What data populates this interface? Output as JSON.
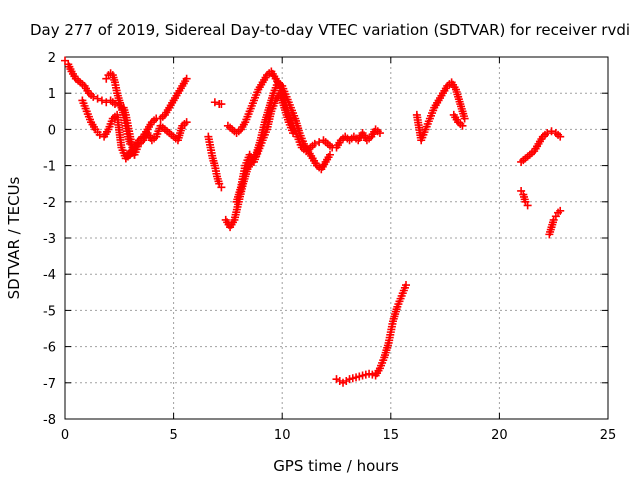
{
  "chart_data": {
    "type": "scatter",
    "title": "Day 277 of 2019, Sidereal Day-to-day VTEC variation (SDTVAR) for receiver rvdi",
    "xlabel": "GPS time / hours",
    "ylabel": "SDTVAR / TECUs",
    "xlim": [
      0,
      25
    ],
    "ylim": [
      -8,
      2
    ],
    "xticks": [
      0,
      5,
      10,
      15,
      20,
      25
    ],
    "yticks": [
      -8,
      -7,
      -6,
      -5,
      -4,
      -3,
      -2,
      -1,
      0,
      1,
      2
    ],
    "grid": true,
    "legend": "none",
    "marker": "+",
    "marker_color": "#ff0000",
    "series": [
      {
        "x": [
          0,
          0.15,
          0.3,
          0.5,
          0.7,
          0.9,
          1.1,
          1.3,
          1.5,
          1.7,
          1.9,
          2.1,
          2.3,
          2.5,
          2.7,
          2.8,
          2.9,
          3.0,
          3.1,
          3.2
        ],
        "values": [
          1.9,
          1.8,
          1.6,
          1.4,
          1.3,
          1.2,
          1.0,
          0.9,
          0.85,
          0.8,
          0.75,
          0.8,
          0.7,
          0.65,
          0.6,
          0.4,
          0.1,
          -0.2,
          -0.5,
          -0.7
        ]
      },
      {
        "x": [
          1.9,
          2.0,
          2.1,
          2.2,
          2.3,
          2.4,
          2.5,
          2.6,
          2.7,
          2.8,
          2.9,
          3.0
        ],
        "values": [
          1.4,
          1.5,
          1.55,
          1.5,
          1.3,
          1.0,
          0.8,
          0.6,
          0.4,
          0.1,
          -0.2,
          -0.4
        ]
      },
      {
        "x": [
          0.8,
          1.0,
          1.2,
          1.4,
          1.6,
          1.8,
          2.0,
          2.2,
          2.4,
          2.6,
          2.8,
          3.0,
          3.2,
          3.4,
          3.6,
          3.8,
          4.0,
          4.2,
          4.4,
          4.6,
          4.8,
          5.0,
          5.2,
          5.4,
          5.6
        ],
        "values": [
          0.8,
          0.5,
          0.2,
          0.0,
          -0.15,
          -0.2,
          0.0,
          0.3,
          0.4,
          -0.5,
          -0.8,
          -0.7,
          -0.5,
          -0.3,
          -0.2,
          0.0,
          0.2,
          0.3,
          0.3,
          0.4,
          0.6,
          0.8,
          1.0,
          1.2,
          1.4
        ]
      },
      {
        "x": [
          2.8,
          3.0,
          3.2,
          3.4,
          3.6,
          3.8,
          4.0,
          4.2,
          4.4,
          4.6,
          4.8,
          5.0,
          5.2,
          5.4,
          5.6
        ],
        "values": [
          -0.8,
          -0.6,
          -0.7,
          -0.4,
          -0.3,
          -0.1,
          -0.3,
          -0.2,
          0.1,
          0.0,
          -0.1,
          -0.2,
          -0.3,
          0.1,
          0.2
        ]
      },
      {
        "x": [
          6.9,
          7.1,
          7.2
        ],
        "values": [
          0.75,
          0.7,
          0.7
        ]
      },
      {
        "x": [
          6.6,
          6.7,
          6.8,
          6.9,
          7.0,
          7.1,
          7.2
        ],
        "values": [
          -0.2,
          -0.5,
          -0.8,
          -1.0,
          -1.3,
          -1.5,
          -1.6
        ]
      },
      {
        "x": [
          7.5,
          7.7,
          7.9,
          8.1,
          8.3,
          8.5,
          8.7,
          8.9,
          9.1,
          9.3,
          9.5,
          9.7,
          9.9,
          10.1,
          10.3,
          10.5,
          10.7,
          10.9,
          11.1,
          11.3,
          11.5,
          11.7,
          11.9,
          12.1,
          12.3,
          12.5,
          12.7,
          12.9,
          13.1,
          13.3,
          13.5,
          13.7,
          13.9,
          14.1,
          14.3,
          14.5
        ],
        "values": [
          0.1,
          0.0,
          -0.1,
          0.0,
          0.2,
          0.5,
          0.8,
          1.1,
          1.3,
          1.5,
          1.6,
          1.4,
          1.2,
          0.8,
          0.4,
          0.1,
          -0.2,
          -0.5,
          -0.6,
          -0.5,
          -0.4,
          -0.35,
          -0.3,
          -0.4,
          -0.5,
          -0.5,
          -0.3,
          -0.2,
          -0.3,
          -0.2,
          -0.3,
          -0.1,
          -0.3,
          -0.2,
          0.0,
          -0.1
        ]
      },
      {
        "x": [
          7.4,
          7.6,
          7.8,
          8.0,
          8.2,
          8.4,
          8.6,
          8.8,
          9.0,
          9.2,
          9.4,
          9.6,
          9.8,
          10.0,
          10.2,
          10.4,
          10.6,
          10.8,
          11.0,
          11.2,
          11.4,
          11.6,
          11.8,
          12.0,
          12.2
        ],
        "values": [
          -2.5,
          -2.7,
          -2.5,
          -2.0,
          -1.5,
          -1.1,
          -0.9,
          -0.7,
          -0.3,
          0.2,
          0.6,
          1.0,
          1.3,
          1.2,
          0.9,
          0.6,
          0.3,
          -0.1,
          -0.4,
          -0.6,
          -0.8,
          -1.0,
          -1.1,
          -0.9,
          -0.7
        ]
      },
      {
        "x": [
          7.9,
          8.1,
          8.3,
          8.5,
          8.7,
          8.9,
          9.1,
          9.3,
          9.5,
          9.7,
          9.9,
          10.1,
          10.3,
          10.5
        ],
        "values": [
          -2.0,
          -1.6,
          -1.0,
          -0.7,
          -0.9,
          -0.6,
          -0.3,
          0.0,
          0.5,
          0.8,
          1.0,
          0.6,
          0.2,
          -0.1
        ]
      },
      {
        "x": [
          12.5,
          12.8,
          13.1,
          13.4,
          13.7,
          14.0,
          14.3,
          14.5,
          14.7,
          14.9,
          15.1,
          15.3,
          15.5,
          15.7
        ],
        "values": [
          -6.9,
          -7.0,
          -6.9,
          -6.85,
          -6.8,
          -6.75,
          -6.8,
          -6.6,
          -6.3,
          -5.9,
          -5.3,
          -4.9,
          -4.6,
          -4.3
        ]
      },
      {
        "x": [
          16.2,
          16.4,
          16.6,
          16.8,
          17.0,
          17.2,
          17.4,
          17.6,
          17.8,
          18.0,
          18.2,
          18.4
        ],
        "values": [
          0.4,
          -0.3,
          0.0,
          0.3,
          0.6,
          0.8,
          1.0,
          1.2,
          1.3,
          1.1,
          0.7,
          0.3
        ]
      },
      {
        "x": [
          17.9,
          18.1,
          18.3
        ],
        "values": [
          0.4,
          0.2,
          0.1
        ]
      },
      {
        "x": [
          21.0,
          21.2,
          21.4,
          21.6,
          21.8,
          22.0,
          22.2,
          22.4,
          22.6,
          22.8
        ],
        "values": [
          -0.9,
          -0.8,
          -0.7,
          -0.6,
          -0.4,
          -0.2,
          -0.1,
          -0.05,
          -0.1,
          -0.2
        ]
      },
      {
        "x": [
          21.0,
          21.1,
          21.2,
          21.3
        ],
        "values": [
          -1.7,
          -1.8,
          -2.0,
          -2.1
        ]
      },
      {
        "x": [
          22.3,
          22.4,
          22.5,
          22.6,
          22.7,
          22.8
        ],
        "values": [
          -2.9,
          -2.7,
          -2.5,
          -2.4,
          -2.3,
          -2.25
        ]
      }
    ]
  }
}
